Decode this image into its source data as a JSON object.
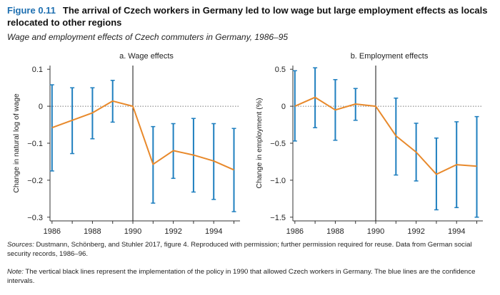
{
  "figure": {
    "label": "Figure 0.11",
    "title": "The arrival of Czech workers in Germany led to low wage but large employment effects as locals relocated to other regions",
    "subtitle": "Wage and employment effects of Czech commuters in Germany, 1986–95"
  },
  "notes": {
    "sources_label": "Sources:",
    "sources_text": " Dustmann, Schönberg, and Stuhler 2017, figure 4. Reproduced with permission; further permission required for reuse. Data from German social security records, 1986–96.",
    "note_label": "Note:",
    "note_text": " The vertical black lines represent the implementation of the policy in 1990 that allowed Czech workers in Germany. The blue lines are the confidence intervals."
  },
  "colors": {
    "line": "#e8892b",
    "ci": "#1f7fbf",
    "axis": "#333333",
    "zero": "#777777"
  },
  "chart_data": [
    {
      "type": "line",
      "title": "a. Wage effects",
      "ylabel": "Change in natural log of wage",
      "xlabel": "",
      "x": [
        1986,
        1987,
        1988,
        1989,
        1990,
        1991,
        1992,
        1993,
        1994,
        1995
      ],
      "xticks": [
        1986,
        1988,
        1990,
        1992,
        1994
      ],
      "xtick_labels": [
        "1986",
        "1988",
        "1990",
        "1992",
        "1994"
      ],
      "xlim": [
        1985.9,
        1995.3
      ],
      "ylim": [
        -0.31,
        0.11
      ],
      "yticks": [
        0.1,
        0,
        -0.1,
        -0.2,
        -0.3
      ],
      "ytick_labels": [
        "0.1",
        "0",
        "−0.1",
        "−0.2",
        "−0.3"
      ],
      "policy_year": 1990,
      "series": [
        {
          "values": [
            -0.058,
            -0.038,
            -0.018,
            0.014,
            0.0,
            -0.157,
            -0.12,
            -0.132,
            -0.148,
            -0.172
          ],
          "ci_low": [
            -0.175,
            -0.128,
            -0.088,
            -0.043,
            0.0,
            -0.262,
            -0.195,
            -0.232,
            -0.252,
            -0.285
          ],
          "ci_high": [
            0.058,
            0.05,
            0.05,
            0.07,
            0.0,
            -0.055,
            -0.047,
            -0.033,
            -0.047,
            -0.06
          ]
        }
      ]
    },
    {
      "type": "line",
      "title": "b. Employment effects",
      "ylabel": "Change in employment (%)",
      "xlabel": "",
      "x": [
        1986,
        1987,
        1988,
        1989,
        1990,
        1991,
        1992,
        1993,
        1994,
        1995
      ],
      "xticks": [
        1986,
        1988,
        1990,
        1992,
        1994
      ],
      "xtick_labels": [
        "1986",
        "1988",
        "1990",
        "1992",
        "1994"
      ],
      "xlim": [
        1985.9,
        1995.3
      ],
      "ylim": [
        -1.55,
        0.55
      ],
      "yticks": [
        0.5,
        0,
        -0.5,
        -1.0,
        -1.5
      ],
      "ytick_labels": [
        "0.5",
        "0",
        "−0.5",
        "−1.0",
        "−1.5"
      ],
      "policy_year": 1990,
      "series": [
        {
          "values": [
            0.0,
            0.12,
            -0.05,
            0.03,
            0.0,
            -0.4,
            -0.62,
            -0.92,
            -0.79,
            -0.81
          ],
          "ci_low": [
            -0.47,
            -0.29,
            -0.46,
            -0.19,
            0.0,
            -0.93,
            -1.01,
            -1.4,
            -1.37,
            -1.5
          ],
          "ci_high": [
            0.48,
            0.52,
            0.36,
            0.24,
            0.0,
            0.11,
            -0.23,
            -0.43,
            -0.21,
            -0.14
          ]
        }
      ]
    }
  ]
}
